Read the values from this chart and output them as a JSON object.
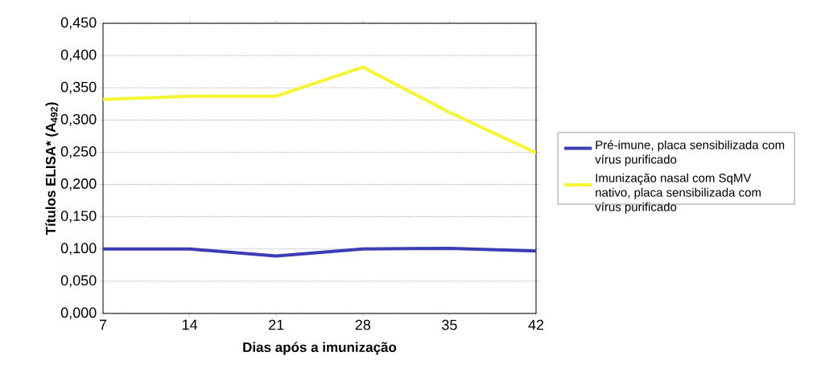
{
  "chart_data": {
    "type": "line",
    "xlabel": "Dias após a imunização",
    "ylabel": "Títulos ELISA* (A$_{492}$)",
    "categories": [
      "7",
      "14",
      "21",
      "28",
      "35",
      "42"
    ],
    "series": [
      {
        "name": "Pré-imune, placa sensibilizada com vírus purificado",
        "color": "#3c3cb4",
        "values": [
          0.1,
          0.1,
          0.089,
          0.1,
          0.101,
          0.097
        ]
      },
      {
        "name": "Imunização nasal com SqMV nativo, placa sensibilizada com vírus purificado",
        "color": "#f5f532",
        "values": [
          0.332,
          0.337,
          0.337,
          0.382,
          0.312,
          0.249
        ]
      }
    ],
    "ylim": [
      0,
      0.45
    ],
    "yticks": [
      {
        "value": 0,
        "label": "0,000"
      },
      {
        "value": 0.05,
        "label": "0,050"
      },
      {
        "value": 0.1,
        "label": "0,100"
      },
      {
        "value": 0.15,
        "label": "0,150"
      },
      {
        "value": 0.2,
        "label": "0,200"
      },
      {
        "value": 0.25,
        "label": "0,250"
      },
      {
        "value": 0.3,
        "label": "0,300"
      },
      {
        "value": 0.35,
        "label": "0,350"
      },
      {
        "value": 0.4,
        "label": "0,400"
      },
      {
        "value": 0.45,
        "label": "0,450"
      }
    ],
    "grid": "y",
    "legend": "right",
    "marker": "none",
    "line_style": "solid"
  }
}
